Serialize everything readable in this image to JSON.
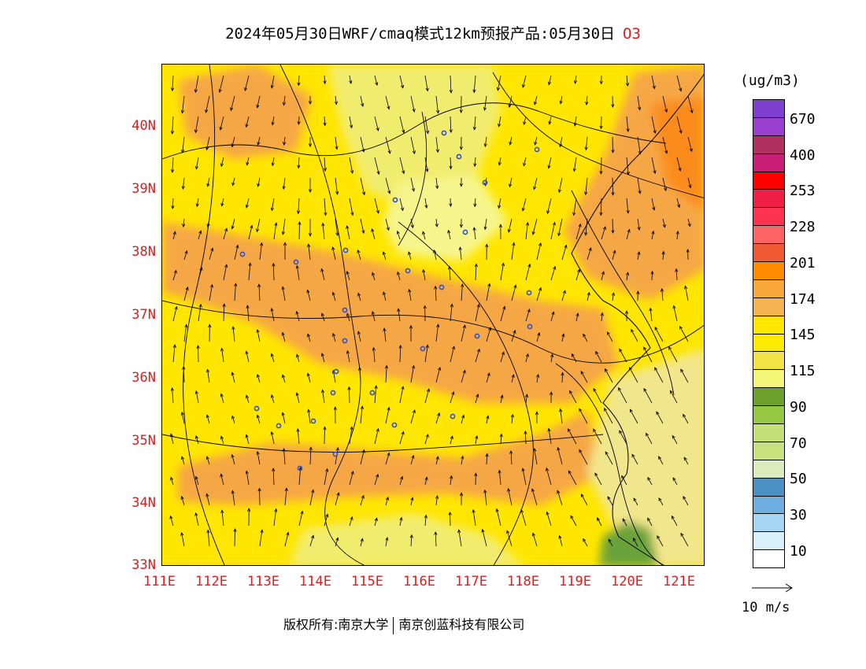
{
  "title": {
    "text": "2024年05月30日WRF/cmaq模式12km预报产品:05月30日",
    "species": "O3"
  },
  "map": {
    "lat_labels": [
      "40N",
      "39N",
      "38N",
      "37N",
      "36N",
      "35N",
      "34N",
      "33N"
    ],
    "lon_labels": [
      "111E",
      "112E",
      "113E",
      "114E",
      "115E",
      "116E",
      "117E",
      "118E",
      "119E",
      "120E",
      "121E"
    ],
    "colors": {
      "low_orange": "#f6a745",
      "yellow": "#ffe600",
      "light_yellow": "#f2ec6e",
      "pale_yellow": "#f6f58c",
      "green": "#6aa23a",
      "city_marker": "#3050d0"
    }
  },
  "legend": {
    "unit": "(ug/m3)",
    "colors": [
      "#7f3fd0",
      "#9a3fd0",
      "#b03060",
      "#c81e78",
      "#ff0000",
      "#f01e46",
      "#ff3250",
      "#ff6464",
      "#f05a32",
      "#ff8c00",
      "#f8a838",
      "#f7b251",
      "#ffe600",
      "#ffeb00",
      "#f2e246",
      "#f5f578",
      "#6ea02e",
      "#96c846",
      "#c3e178",
      "#c8e17d",
      "#dcebbe",
      "#4b91c3",
      "#6eaee1",
      "#a5d7f5",
      "#d7f0fa",
      "#ffffff"
    ],
    "labels": [
      "670",
      "400",
      "253",
      "228",
      "201",
      "174",
      "145",
      "115",
      "90",
      "70",
      "50",
      "30",
      "10"
    ]
  },
  "wind_reference": {
    "label": "10 m/s"
  },
  "footer": {
    "copyright": "版权所有:南京大学",
    "company": "南京创蓝科技有限公司"
  }
}
